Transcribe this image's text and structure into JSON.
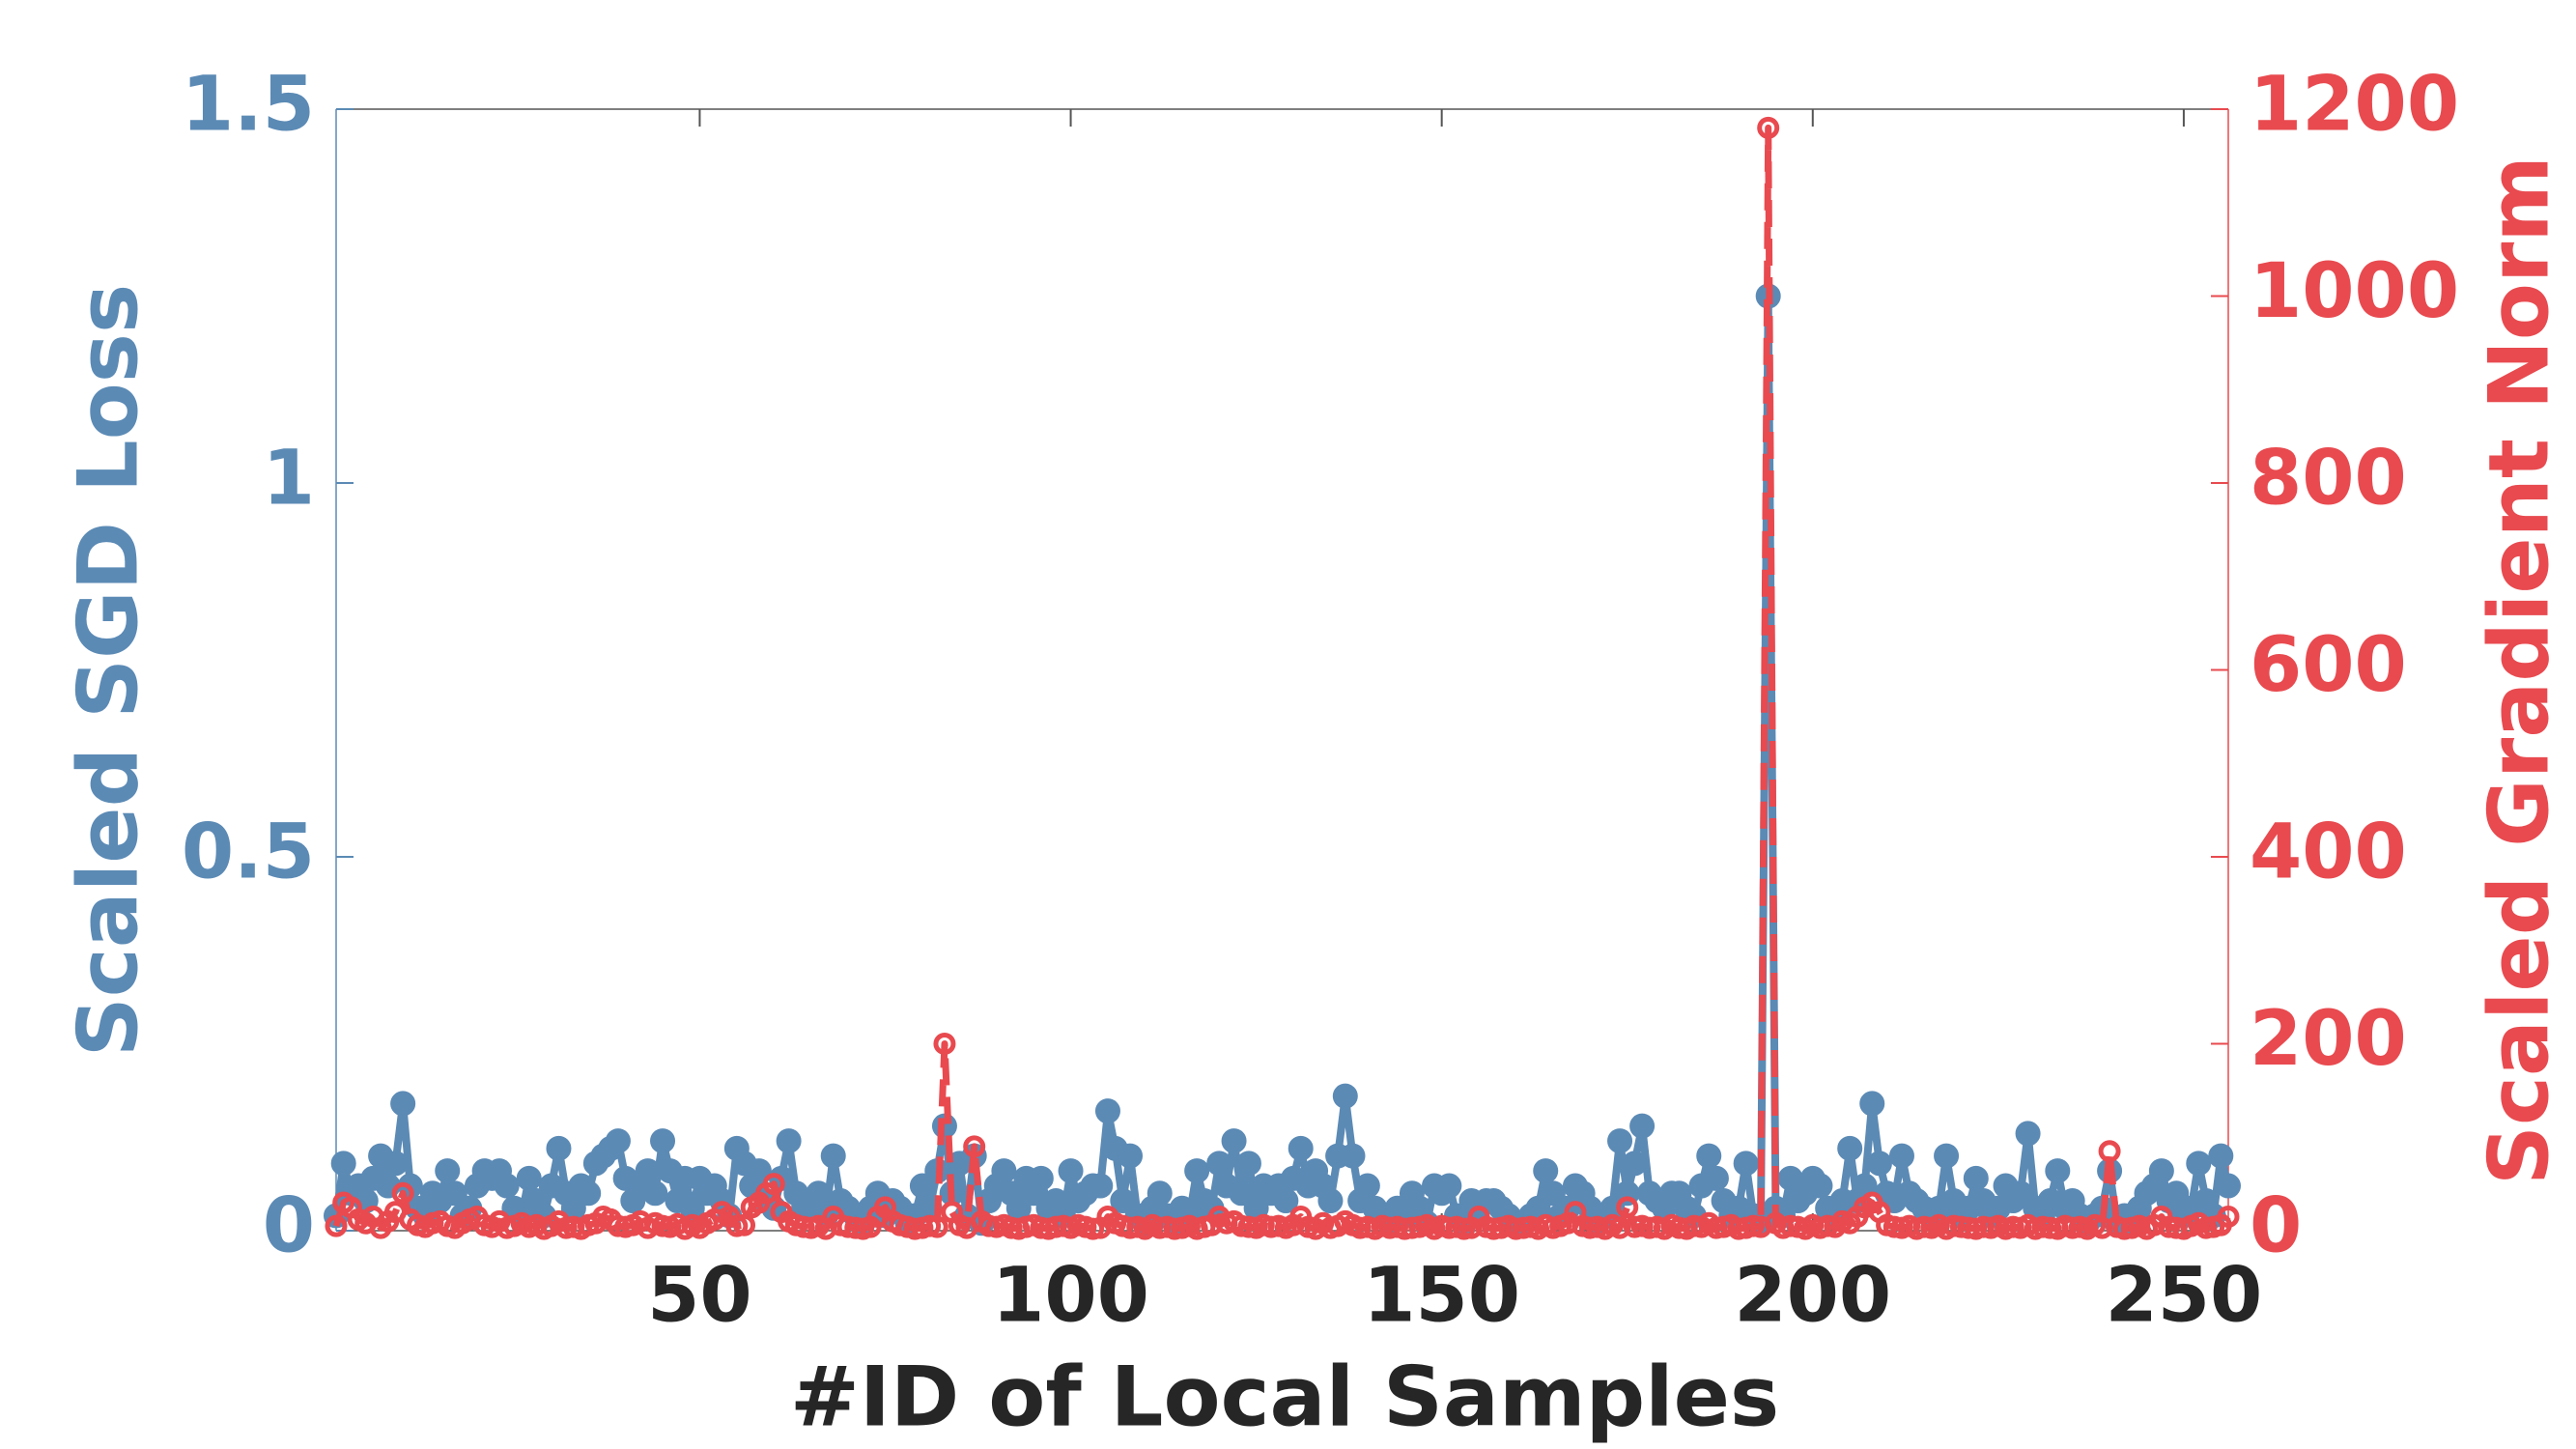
{
  "chart_data": {
    "type": "line",
    "xlabel": "#ID of Local Samples",
    "ylabel": "Scaled SGD Loss",
    "y2label": "Scaled Gradient Norm",
    "xlim": [
      1,
      256
    ],
    "xticks": [
      50,
      100,
      150,
      200,
      250
    ],
    "ylim": [
      0,
      1.5
    ],
    "yticks": [
      0,
      0.5,
      1,
      1.5
    ],
    "y2lim": [
      0,
      1200
    ],
    "y2ticks": [
      0,
      200,
      400,
      600,
      800,
      1000,
      1200
    ],
    "x": [
      1,
      2,
      3,
      4,
      5,
      6,
      7,
      8,
      9,
      10,
      11,
      12,
      13,
      14,
      15,
      16,
      17,
      18,
      19,
      20,
      21,
      22,
      23,
      24,
      25,
      26,
      27,
      28,
      29,
      30,
      31,
      32,
      33,
      34,
      35,
      36,
      37,
      38,
      39,
      40,
      41,
      42,
      43,
      44,
      45,
      46,
      47,
      48,
      49,
      50,
      51,
      52,
      53,
      54,
      55,
      56,
      57,
      58,
      59,
      60,
      61,
      62,
      63,
      64,
      65,
      66,
      67,
      68,
      69,
      70,
      71,
      72,
      73,
      74,
      75,
      76,
      77,
      78,
      79,
      80,
      81,
      82,
      83,
      84,
      85,
      86,
      87,
      88,
      89,
      90,
      91,
      92,
      93,
      94,
      95,
      96,
      97,
      98,
      99,
      100,
      101,
      102,
      103,
      104,
      105,
      106,
      107,
      108,
      109,
      110,
      111,
      112,
      113,
      114,
      115,
      116,
      117,
      118,
      119,
      120,
      121,
      122,
      123,
      124,
      125,
      126,
      127,
      128,
      129,
      130,
      131,
      132,
      133,
      134,
      135,
      136,
      137,
      138,
      139,
      140,
      141,
      142,
      143,
      144,
      145,
      146,
      147,
      148,
      149,
      150,
      151,
      152,
      153,
      154,
      155,
      156,
      157,
      158,
      159,
      160,
      161,
      162,
      163,
      164,
      165,
      166,
      167,
      168,
      169,
      170,
      171,
      172,
      173,
      174,
      175,
      176,
      177,
      178,
      179,
      180,
      181,
      182,
      183,
      184,
      185,
      186,
      187,
      188,
      189,
      190,
      191,
      192,
      193,
      194,
      195,
      196,
      197,
      198,
      199,
      200,
      201,
      202,
      203,
      204,
      205,
      206,
      207,
      208,
      209,
      210,
      211,
      212,
      213,
      214,
      215,
      216,
      217,
      218,
      219,
      220,
      221,
      222,
      223,
      224,
      225,
      226,
      227,
      228,
      229,
      230,
      231,
      232,
      233,
      234,
      235,
      236,
      237,
      238,
      239,
      240,
      241,
      242,
      243,
      244,
      245,
      246,
      247,
      248,
      249,
      250,
      251,
      252,
      253,
      254,
      255,
      256
    ],
    "series": [
      {
        "color": "#5b8ab5",
        "axis": "y",
        "values": [
          0.02,
          0.09,
          0.05,
          0.06,
          0.04,
          0.07,
          0.1,
          0.06,
          0.09,
          0.17,
          0.06,
          0.03,
          0.02,
          0.05,
          0.04,
          0.08,
          0.05,
          0.02,
          0.03,
          0.06,
          0.08,
          0.07,
          0.08,
          0.06,
          0.03,
          0.02,
          0.07,
          0.04,
          0.02,
          0.06,
          0.11,
          0.05,
          0.03,
          0.06,
          0.05,
          0.09,
          0.1,
          0.11,
          0.12,
          0.07,
          0.04,
          0.06,
          0.08,
          0.05,
          0.12,
          0.08,
          0.04,
          0.07,
          0.03,
          0.07,
          0.05,
          0.06,
          0.04,
          0.02,
          0.11,
          0.09,
          0.06,
          0.08,
          0.04,
          0.03,
          0.07,
          0.12,
          0.05,
          0.03,
          0.04,
          0.05,
          0.02,
          0.1,
          0.04,
          0.03,
          0.02,
          0.01,
          0.03,
          0.05,
          0.02,
          0.04,
          0.03,
          0.01,
          0.02,
          0.06,
          0.03,
          0.08,
          0.14,
          0.05,
          0.09,
          0.02,
          0.1,
          0.01,
          0.04,
          0.06,
          0.08,
          0.05,
          0.03,
          0.07,
          0.05,
          0.07,
          0.03,
          0.04,
          0.02,
          0.08,
          0.04,
          0.05,
          0.06,
          0.06,
          0.16,
          0.11,
          0.04,
          0.1,
          0.02,
          0.01,
          0.03,
          0.05,
          0.02,
          0.01,
          0.03,
          0.02,
          0.08,
          0.04,
          0.03,
          0.09,
          0.06,
          0.12,
          0.05,
          0.09,
          0.03,
          0.06,
          0.05,
          0.06,
          0.04,
          0.07,
          0.11,
          0.06,
          0.08,
          0.06,
          0.04,
          0.1,
          0.18,
          0.1,
          0.04,
          0.06,
          0.03,
          0.02,
          0.01,
          0.03,
          0.02,
          0.05,
          0.03,
          0.01,
          0.06,
          0.05,
          0.06,
          0.02,
          0.01,
          0.04,
          0.03,
          0.04,
          0.04,
          0.03,
          0.02,
          0.01,
          0.01,
          0.02,
          0.03,
          0.08,
          0.05,
          0.02,
          0.03,
          0.06,
          0.05,
          0.03,
          0.01,
          0.02,
          0.03,
          0.12,
          0.05,
          0.09,
          0.14,
          0.05,
          0.04,
          0.03,
          0.05,
          0.05,
          0.03,
          0.02,
          0.06,
          0.1,
          0.07,
          0.04,
          0.02,
          0.03,
          0.09,
          0.02,
          0.01,
          1.25,
          0.03,
          0.02,
          0.07,
          0.04,
          0.05,
          0.07,
          0.06,
          0.03,
          0.02,
          0.04,
          0.11,
          0.04,
          0.06,
          0.17,
          0.09,
          0.05,
          0.04,
          0.1,
          0.05,
          0.04,
          0.03,
          0.02,
          0.03,
          0.1,
          0.04,
          0.02,
          0.03,
          0.07,
          0.04,
          0.02,
          0.03,
          0.06,
          0.04,
          0.05,
          0.13,
          0.03,
          0.02,
          0.04,
          0.08,
          0.03,
          0.04,
          0.02,
          0.01,
          0.02,
          0.03,
          0.08,
          0.01,
          0.02,
          0.01,
          0.03,
          0.05,
          0.06,
          0.08,
          0.04,
          0.05,
          0.02,
          0.03,
          0.09,
          0.04,
          0.02,
          0.1,
          0.06
        ]
      },
      {
        "color": "#e84a4f",
        "axis": "y2",
        "values": [
          5,
          30,
          25,
          12,
          8,
          15,
          3,
          10,
          20,
          40,
          12,
          6,
          4,
          8,
          10,
          5,
          3,
          8,
          12,
          15,
          6,
          4,
          10,
          3,
          5,
          8,
          4,
          6,
          2,
          5,
          10,
          3,
          4,
          2,
          6,
          8,
          15,
          12,
          5,
          4,
          6,
          10,
          3,
          8,
          5,
          4,
          7,
          2,
          6,
          3,
          8,
          12,
          20,
          15,
          5,
          6,
          25,
          30,
          40,
          50,
          20,
          10,
          6,
          4,
          3,
          5,
          2,
          15,
          6,
          4,
          3,
          2,
          4,
          15,
          25,
          10,
          6,
          4,
          2,
          3,
          5,
          4,
          200,
          20,
          6,
          3,
          90,
          10,
          5,
          4,
          6,
          3,
          2,
          4,
          6,
          3,
          2,
          4,
          5,
          3,
          6,
          4,
          2,
          3,
          15,
          8,
          5,
          3,
          4,
          2,
          6,
          3,
          4,
          2,
          3,
          5,
          2,
          4,
          6,
          15,
          8,
          10,
          5,
          4,
          3,
          6,
          4,
          5,
          3,
          6,
          15,
          4,
          2,
          8,
          3,
          5,
          10,
          6,
          3,
          4,
          2,
          5,
          3,
          4,
          2,
          3,
          4,
          6,
          2,
          5,
          3,
          4,
          2,
          3,
          15,
          4,
          2,
          3,
          5,
          2,
          3,
          4,
          2,
          6,
          3,
          5,
          8,
          20,
          5,
          3,
          4,
          2,
          6,
          3,
          25,
          4,
          5,
          3,
          4,
          2,
          6,
          3,
          2,
          5,
          4,
          8,
          3,
          4,
          6,
          2,
          3,
          5,
          4,
          1180,
          8,
          3,
          5,
          4,
          2,
          6,
          3,
          5,
          4,
          10,
          8,
          15,
          25,
          30,
          20,
          6,
          4,
          3,
          5,
          2,
          4,
          3,
          6,
          2,
          5,
          4,
          3,
          2,
          4,
          3,
          5,
          2,
          4,
          3,
          6,
          2,
          4,
          3,
          2,
          5,
          3,
          4,
          2,
          6,
          3,
          85,
          4,
          2,
          3,
          5,
          2,
          6,
          15,
          4,
          3,
          2,
          5,
          8,
          3,
          4,
          6,
          15
        ]
      }
    ]
  }
}
